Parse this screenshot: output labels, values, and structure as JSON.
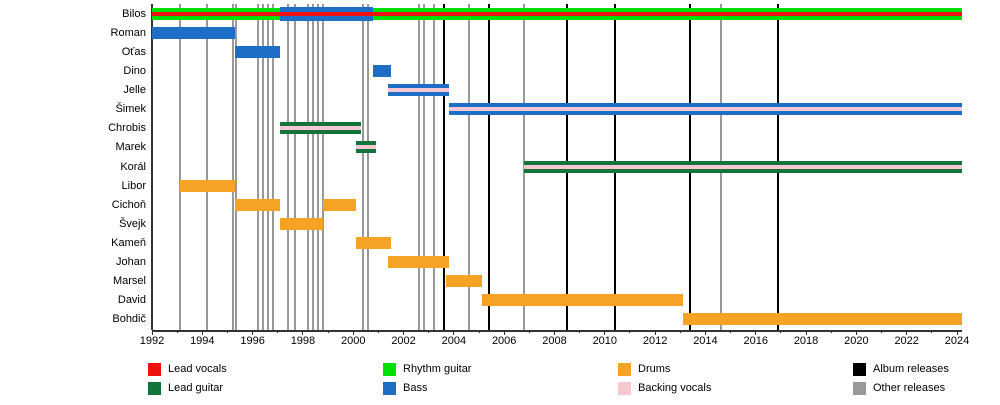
{
  "chart_data": {
    "type": "timeline",
    "title": "",
    "x_axis": {
      "min_year": 1992,
      "max_year": 2024.2,
      "tick_step_years": 2,
      "tick_labels": [
        "1992",
        "1994",
        "1996",
        "1998",
        "2000",
        "2002",
        "2004",
        "2006",
        "2008",
        "2010",
        "2012",
        "2014",
        "2016",
        "2018",
        "2020",
        "2022",
        "2024"
      ]
    },
    "members": [
      {
        "name": "Bilos",
        "segments": [
          {
            "start": 1992.0,
            "end": 2024.2,
            "roles": [
              "rhythm_guitar",
              "lead_vocals"
            ]
          },
          {
            "start": 1997.1,
            "end": 2000.8,
            "roles": [
              "bass",
              "lead_vocals"
            ],
            "tall": true
          }
        ]
      },
      {
        "name": "Roman",
        "segments": [
          {
            "start": 1992.0,
            "end": 1995.3,
            "roles": [
              "bass"
            ]
          }
        ]
      },
      {
        "name": "Oťas",
        "segments": [
          {
            "start": 1995.3,
            "end": 1997.1,
            "roles": [
              "bass"
            ]
          }
        ]
      },
      {
        "name": "Dino",
        "segments": [
          {
            "start": 2000.8,
            "end": 2001.5,
            "roles": [
              "bass"
            ]
          }
        ]
      },
      {
        "name": "Jelle",
        "segments": [
          {
            "start": 2001.4,
            "end": 2003.8,
            "roles": [
              "bass",
              "backing_vocals"
            ]
          }
        ]
      },
      {
        "name": "Šimek",
        "segments": [
          {
            "start": 2003.8,
            "end": 2024.2,
            "roles": [
              "bass",
              "backing_vocals"
            ]
          }
        ]
      },
      {
        "name": "Chrobis",
        "segments": [
          {
            "start": 1997.1,
            "end": 2000.3,
            "roles": [
              "lead_guitar",
              "backing_vocals"
            ]
          }
        ]
      },
      {
        "name": "Marek",
        "segments": [
          {
            "start": 2000.1,
            "end": 2000.9,
            "roles": [
              "lead_guitar",
              "backing_vocals"
            ]
          }
        ]
      },
      {
        "name": "Korál",
        "segments": [
          {
            "start": 2006.8,
            "end": 2024.2,
            "roles": [
              "lead_guitar",
              "backing_vocals"
            ]
          }
        ]
      },
      {
        "name": "Libor",
        "segments": [
          {
            "start": 1993.1,
            "end": 1995.3,
            "roles": [
              "drums"
            ]
          }
        ]
      },
      {
        "name": "Cichoň",
        "segments": [
          {
            "start": 1995.3,
            "end": 1997.1,
            "roles": [
              "drums"
            ]
          },
          {
            "start": 1998.8,
            "end": 2000.1,
            "roles": [
              "drums"
            ]
          }
        ]
      },
      {
        "name": "Švejk",
        "segments": [
          {
            "start": 1997.1,
            "end": 1998.8,
            "roles": [
              "drums"
            ]
          }
        ]
      },
      {
        "name": "Kameň",
        "segments": [
          {
            "start": 2000.1,
            "end": 2001.5,
            "roles": [
              "drums"
            ]
          }
        ]
      },
      {
        "name": "Johan",
        "segments": [
          {
            "start": 2001.4,
            "end": 2003.8,
            "roles": [
              "drums"
            ]
          }
        ]
      },
      {
        "name": "Marsel",
        "segments": [
          {
            "start": 2003.7,
            "end": 2005.1,
            "roles": [
              "drums"
            ]
          }
        ]
      },
      {
        "name": "David",
        "segments": [
          {
            "start": 2005.1,
            "end": 2013.1,
            "roles": [
              "drums"
            ]
          }
        ]
      },
      {
        "name": "Bohdič",
        "segments": [
          {
            "start": 2013.1,
            "end": 2024.2,
            "roles": [
              "drums"
            ]
          }
        ]
      }
    ],
    "album_release_years": [
      2003.6,
      2005.4,
      2008.5,
      2010.4,
      2013.4,
      2016.9
    ],
    "other_release_years": [
      1993.1,
      1994.2,
      1995.2,
      1995.35,
      1996.2,
      1996.4,
      1996.6,
      1996.8,
      1997.4,
      1997.7,
      1998.2,
      1998.4,
      1998.6,
      1998.8,
      2000.4,
      2000.6,
      2002.6,
      2002.8,
      2003.2,
      2004.6,
      2006.8,
      2014.6
    ]
  },
  "legend": {
    "items": [
      {
        "label": "Lead vocals",
        "role": "lead_vocals"
      },
      {
        "label": "Lead guitar",
        "role": "lead_guitar"
      },
      {
        "label": "Rhythm guitar",
        "role": "rhythm_guitar"
      },
      {
        "label": "Bass",
        "role": "bass"
      },
      {
        "label": "Drums",
        "role": "drums"
      },
      {
        "label": "Backing vocals",
        "role": "backing_vocals"
      },
      {
        "label": "Album releases",
        "role": "album"
      },
      {
        "label": "Other releases",
        "role": "other"
      }
    ]
  },
  "colors": {
    "lead_vocals": "#ee1111",
    "lead_guitar": "#14743c",
    "rhythm_guitar": "#00e000",
    "bass": "#1e6ec8",
    "drums": "#f6a325",
    "backing_vocals": "#f8c8d2",
    "album": "#000000",
    "other": "#999999"
  }
}
